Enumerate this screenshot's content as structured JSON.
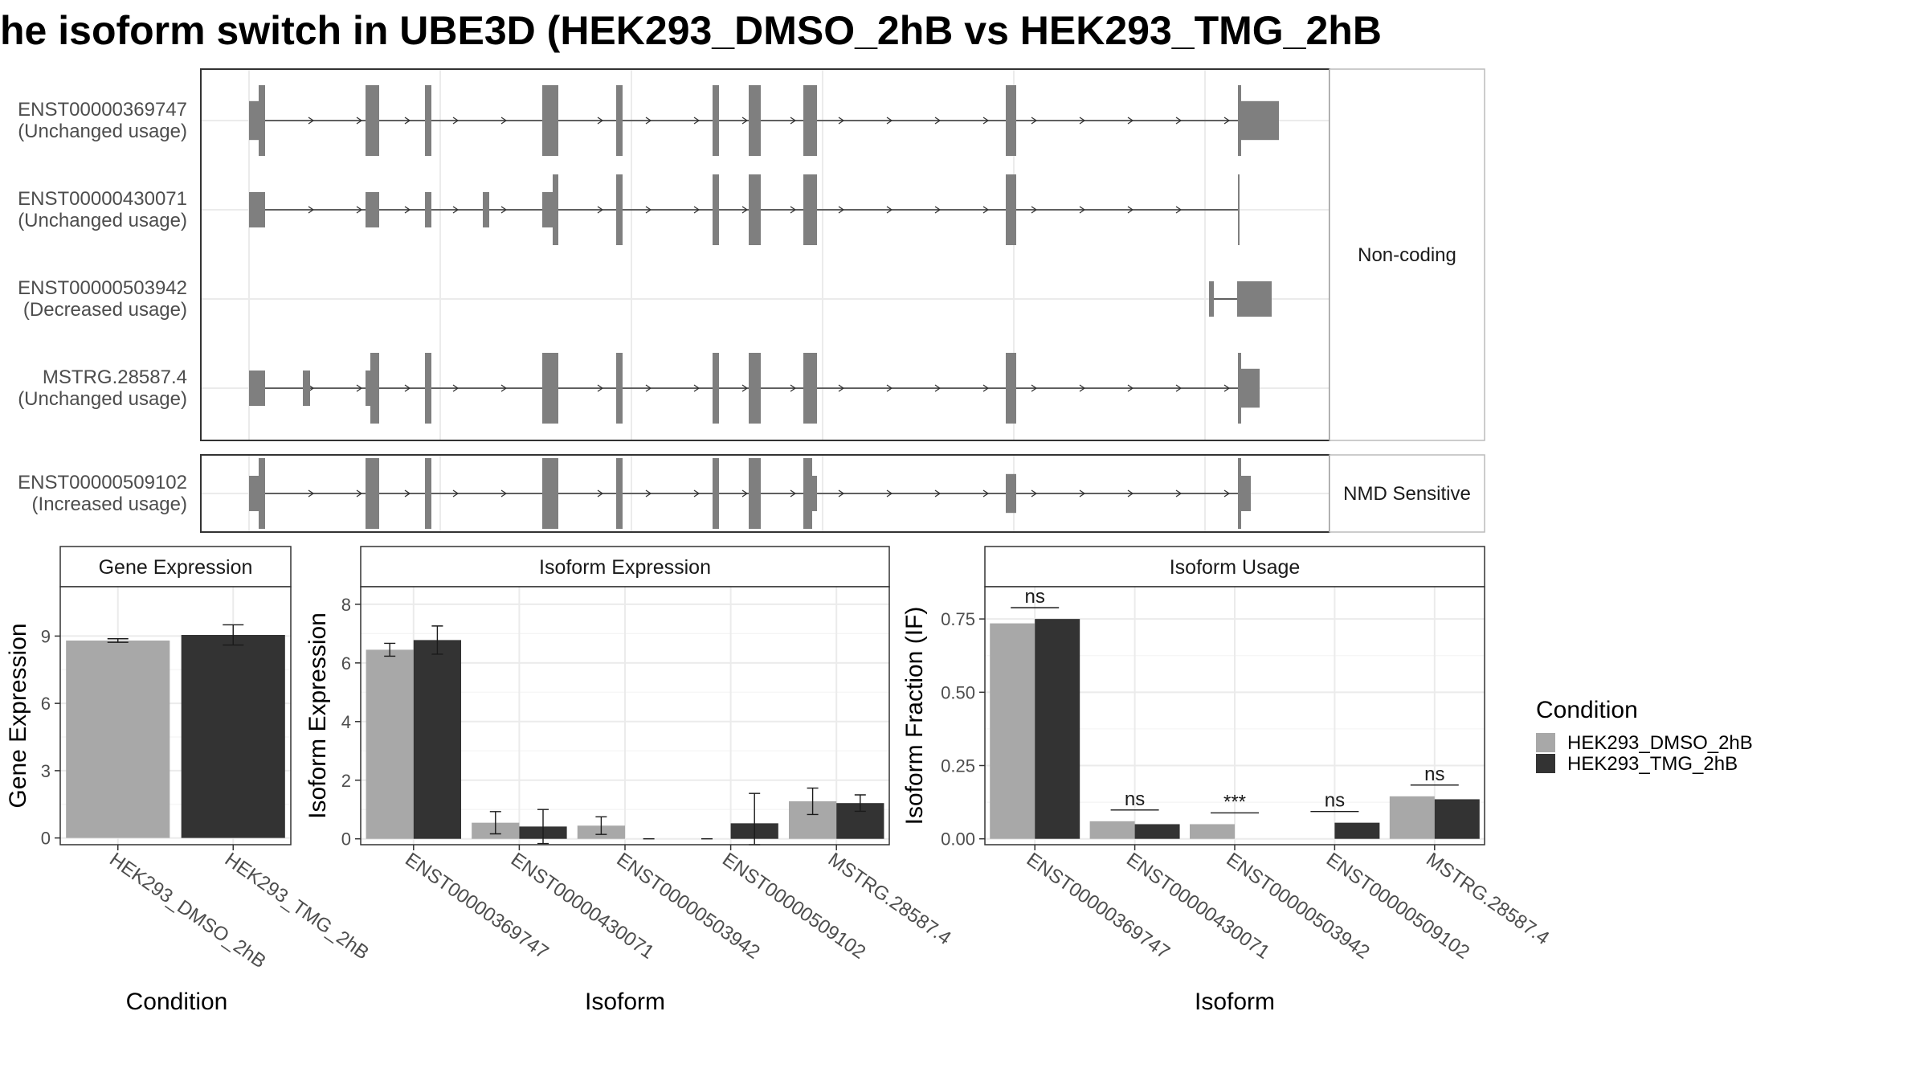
{
  "title": "he isoform switch in UBE3D (HEK293_DMSO_2hB vs HEK293_TMG_2hB",
  "colors": {
    "dmso": "#a8a8a8",
    "tmg": "#333333",
    "exon": "#7f7f7f",
    "panel_border": "#333333",
    "strip_bg": "#ffffff",
    "grid": "#ebebeb"
  },
  "structure": {
    "groups": [
      {
        "label": "Non-coding",
        "transcripts": [
          {
            "id": "ENST00000369747",
            "usage": "(Unchanged usage)"
          },
          {
            "id": "ENST00000430071",
            "usage": "(Unchanged usage)"
          },
          {
            "id": "ENST00000503942",
            "usage": "(Decreased usage)"
          },
          {
            "id": "MSTRG.28587.4",
            "usage": "(Unchanged usage)"
          }
        ]
      },
      {
        "label": "NMD Sensitive",
        "transcripts": [
          {
            "id": "ENST00000509102",
            "usage": "(Increased usage)"
          }
        ]
      }
    ]
  },
  "legend": {
    "title": "Condition",
    "items": [
      "HEK293_DMSO_2hB",
      "HEK293_TMG_2hB"
    ]
  },
  "chart_data": [
    {
      "type": "bar",
      "title": "Gene Expression",
      "xlabel": "Condition",
      "ylabel": "Gene Expression",
      "categories": [
        "HEK293_DMSO_2hB",
        "HEK293_TMG_2hB"
      ],
      "values": [
        8.8,
        9.05
      ],
      "errors": [
        0.08,
        0.45
      ],
      "ylim": [
        -0.3,
        11.2
      ],
      "yticks": [
        0,
        3,
        6,
        9
      ],
      "ytick_labels": [
        "0",
        "3",
        "6",
        "9"
      ]
    },
    {
      "type": "bar",
      "title": "Isoform Expression",
      "xlabel": "Isoform",
      "ylabel": "Isoform Expression",
      "categories": [
        "ENST00000369747",
        "ENST00000430071",
        "ENST00000503942",
        "ENST00000509102",
        "MSTRG.28587.4"
      ],
      "series": [
        {
          "name": "HEK293_DMSO_2hB",
          "values": [
            6.45,
            0.55,
            0.45,
            0.0,
            1.28
          ],
          "errors": [
            0.22,
            0.38,
            0.3,
            0.0,
            0.45
          ]
        },
        {
          "name": "HEK293_TMG_2hB",
          "values": [
            6.78,
            0.42,
            0.0,
            0.53,
            1.22
          ],
          "errors": [
            0.48,
            0.58,
            0.0,
            1.02,
            0.28
          ]
        }
      ],
      "ylim": [
        -0.2,
        8.6
      ],
      "yticks": [
        0,
        2,
        4,
        6,
        8
      ],
      "ytick_labels": [
        "0",
        "2",
        "4",
        "6",
        "8"
      ]
    },
    {
      "type": "bar",
      "title": "Isoform Usage",
      "xlabel": "Isoform",
      "ylabel": "Isoform Fraction (IF)",
      "categories": [
        "ENST00000369747",
        "ENST00000430071",
        "ENST00000503942",
        "ENST00000509102",
        "MSTRG.28587.4"
      ],
      "series": [
        {
          "name": "HEK293_DMSO_2hB",
          "values": [
            0.735,
            0.06,
            0.05,
            0.0,
            0.145
          ]
        },
        {
          "name": "HEK293_TMG_2hB",
          "values": [
            0.75,
            0.05,
            0.0,
            0.055,
            0.135
          ]
        }
      ],
      "significance": [
        "ns",
        "ns",
        "***",
        "ns",
        "ns"
      ],
      "ylim": [
        -0.02,
        0.86
      ],
      "yticks": [
        0,
        0.25,
        0.5,
        0.75
      ],
      "ytick_labels": [
        "0.00",
        "0.25",
        "0.50",
        "0.75"
      ]
    }
  ]
}
